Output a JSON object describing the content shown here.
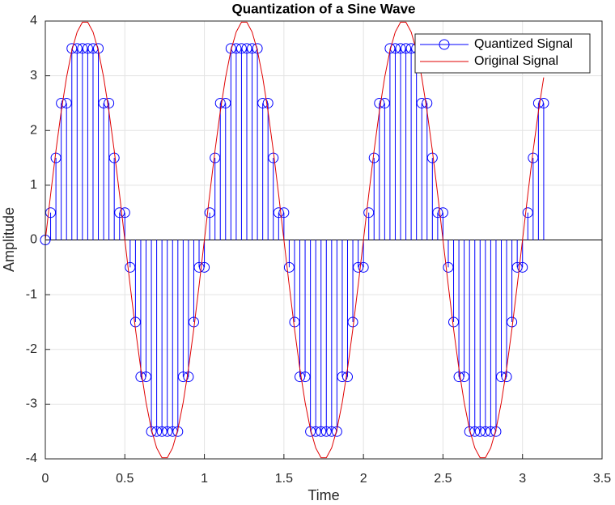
{
  "chart_data": {
    "type": "stem",
    "title": "Quantization of a Sine Wave",
    "x_label": "Time",
    "y_label": "Amplitude",
    "xlim": [
      0,
      3.5
    ],
    "xticks": [
      0,
      0.5,
      1,
      1.5,
      2,
      2.5,
      3,
      3.5
    ],
    "ylim": [
      -4,
      4
    ],
    "yticks": [
      -4,
      -3,
      -2,
      -1,
      0,
      1,
      2,
      3,
      4
    ],
    "grid": true,
    "legend": "northeast",
    "x": [
      0,
      0.0333,
      0.0667,
      0.1,
      0.1333,
      0.1667,
      0.2,
      0.2333,
      0.2667,
      0.3,
      0.3333,
      0.3667,
      0.4,
      0.4333,
      0.4667,
      0.5,
      0.5333,
      0.5667,
      0.6,
      0.6333,
      0.6667,
      0.7,
      0.7333,
      0.7667,
      0.8,
      0.8333,
      0.8667,
      0.9,
      0.9333,
      0.9667,
      1,
      1.0333,
      1.0667,
      1.1,
      1.1333,
      1.1667,
      1.2,
      1.2333,
      1.2667,
      1.3,
      1.3333,
      1.3667,
      1.4,
      1.4333,
      1.4667,
      1.5,
      1.5333,
      1.5667,
      1.6,
      1.6333,
      1.6667,
      1.7,
      1.7333,
      1.7667,
      1.8,
      1.8333,
      1.8667,
      1.9,
      1.9333,
      1.9667,
      2,
      2.0333,
      2.0667,
      2.1,
      2.1333,
      2.1667,
      2.2,
      2.2333,
      2.2667,
      2.3,
      2.3333,
      2.3667,
      2.4,
      2.4333,
      2.4667,
      2.5,
      2.5333,
      2.5667,
      2.6,
      2.6333,
      2.6667,
      2.7,
      2.7333,
      2.7667,
      2.8,
      2.8333,
      2.8667,
      2.9,
      2.9333,
      2.9667,
      3,
      3.0333,
      3.0667,
      3.1,
      3.1333
    ],
    "series": [
      {
        "name": "Quantized Signal",
        "color": "#0000ff",
        "style": "stem",
        "values": [
          0,
          0.5,
          1.5,
          2.5,
          2.5,
          3.5,
          3.5,
          3.5,
          3.5,
          3.5,
          3.5,
          2.5,
          2.5,
          1.5,
          0.5,
          0.5,
          -0.5,
          -1.5,
          -2.5,
          -2.5,
          -3.5,
          -3.5,
          -3.5,
          -3.5,
          -3.5,
          -3.5,
          -2.5,
          -2.5,
          -1.5,
          -0.5,
          -0.5,
          0.5,
          1.5,
          2.5,
          2.5,
          3.5,
          3.5,
          3.5,
          3.5,
          3.5,
          3.5,
          2.5,
          2.5,
          1.5,
          0.5,
          0.5,
          -0.5,
          -1.5,
          -2.5,
          -2.5,
          -3.5,
          -3.5,
          -3.5,
          -3.5,
          -3.5,
          -3.5,
          -2.5,
          -2.5,
          -1.5,
          -0.5,
          -0.5,
          0.5,
          1.5,
          2.5,
          2.5,
          3.5,
          3.5,
          3.5,
          3.5,
          3.5,
          3.5,
          2.5,
          2.5,
          1.5,
          0.5,
          0.5,
          -0.5,
          -1.5,
          -2.5,
          -2.5,
          -3.5,
          -3.5,
          -3.5,
          -3.5,
          -3.5,
          -3.5,
          -2.5,
          -2.5,
          -1.5,
          -0.5,
          -0.5,
          0.5,
          1.5,
          2.5,
          2.5
        ]
      },
      {
        "name": "Original Signal",
        "color": "#e00000",
        "style": "line",
        "values": [
          0,
          0.83,
          1.63,
          2.35,
          2.97,
          3.46,
          3.8,
          3.98,
          3.98,
          3.8,
          3.46,
          2.97,
          2.35,
          1.63,
          0.83,
          0,
          -0.83,
          -1.63,
          -2.35,
          -2.97,
          -3.46,
          -3.8,
          -3.98,
          -3.98,
          -3.8,
          -3.46,
          -2.97,
          -2.35,
          -1.63,
          -0.83,
          0,
          0.83,
          1.63,
          2.35,
          2.97,
          3.46,
          3.8,
          3.98,
          3.98,
          3.8,
          3.46,
          2.97,
          2.35,
          1.63,
          0.83,
          0,
          -0.83,
          -1.63,
          -2.35,
          -2.97,
          -3.46,
          -3.8,
          -3.98,
          -3.98,
          -3.8,
          -3.46,
          -2.97,
          -2.35,
          -1.63,
          -0.83,
          0,
          0.83,
          1.63,
          2.35,
          2.97,
          3.46,
          3.8,
          3.98,
          3.98,
          3.8,
          3.46,
          2.97,
          2.35,
          1.63,
          0.83,
          0,
          -0.83,
          -1.63,
          -2.35,
          -2.97,
          -3.46,
          -3.8,
          -3.98,
          -3.98,
          -3.8,
          -3.46,
          -2.97,
          -2.35,
          -1.63,
          -0.83,
          0,
          0.83,
          1.63,
          2.35,
          2.97
        ]
      }
    ]
  }
}
